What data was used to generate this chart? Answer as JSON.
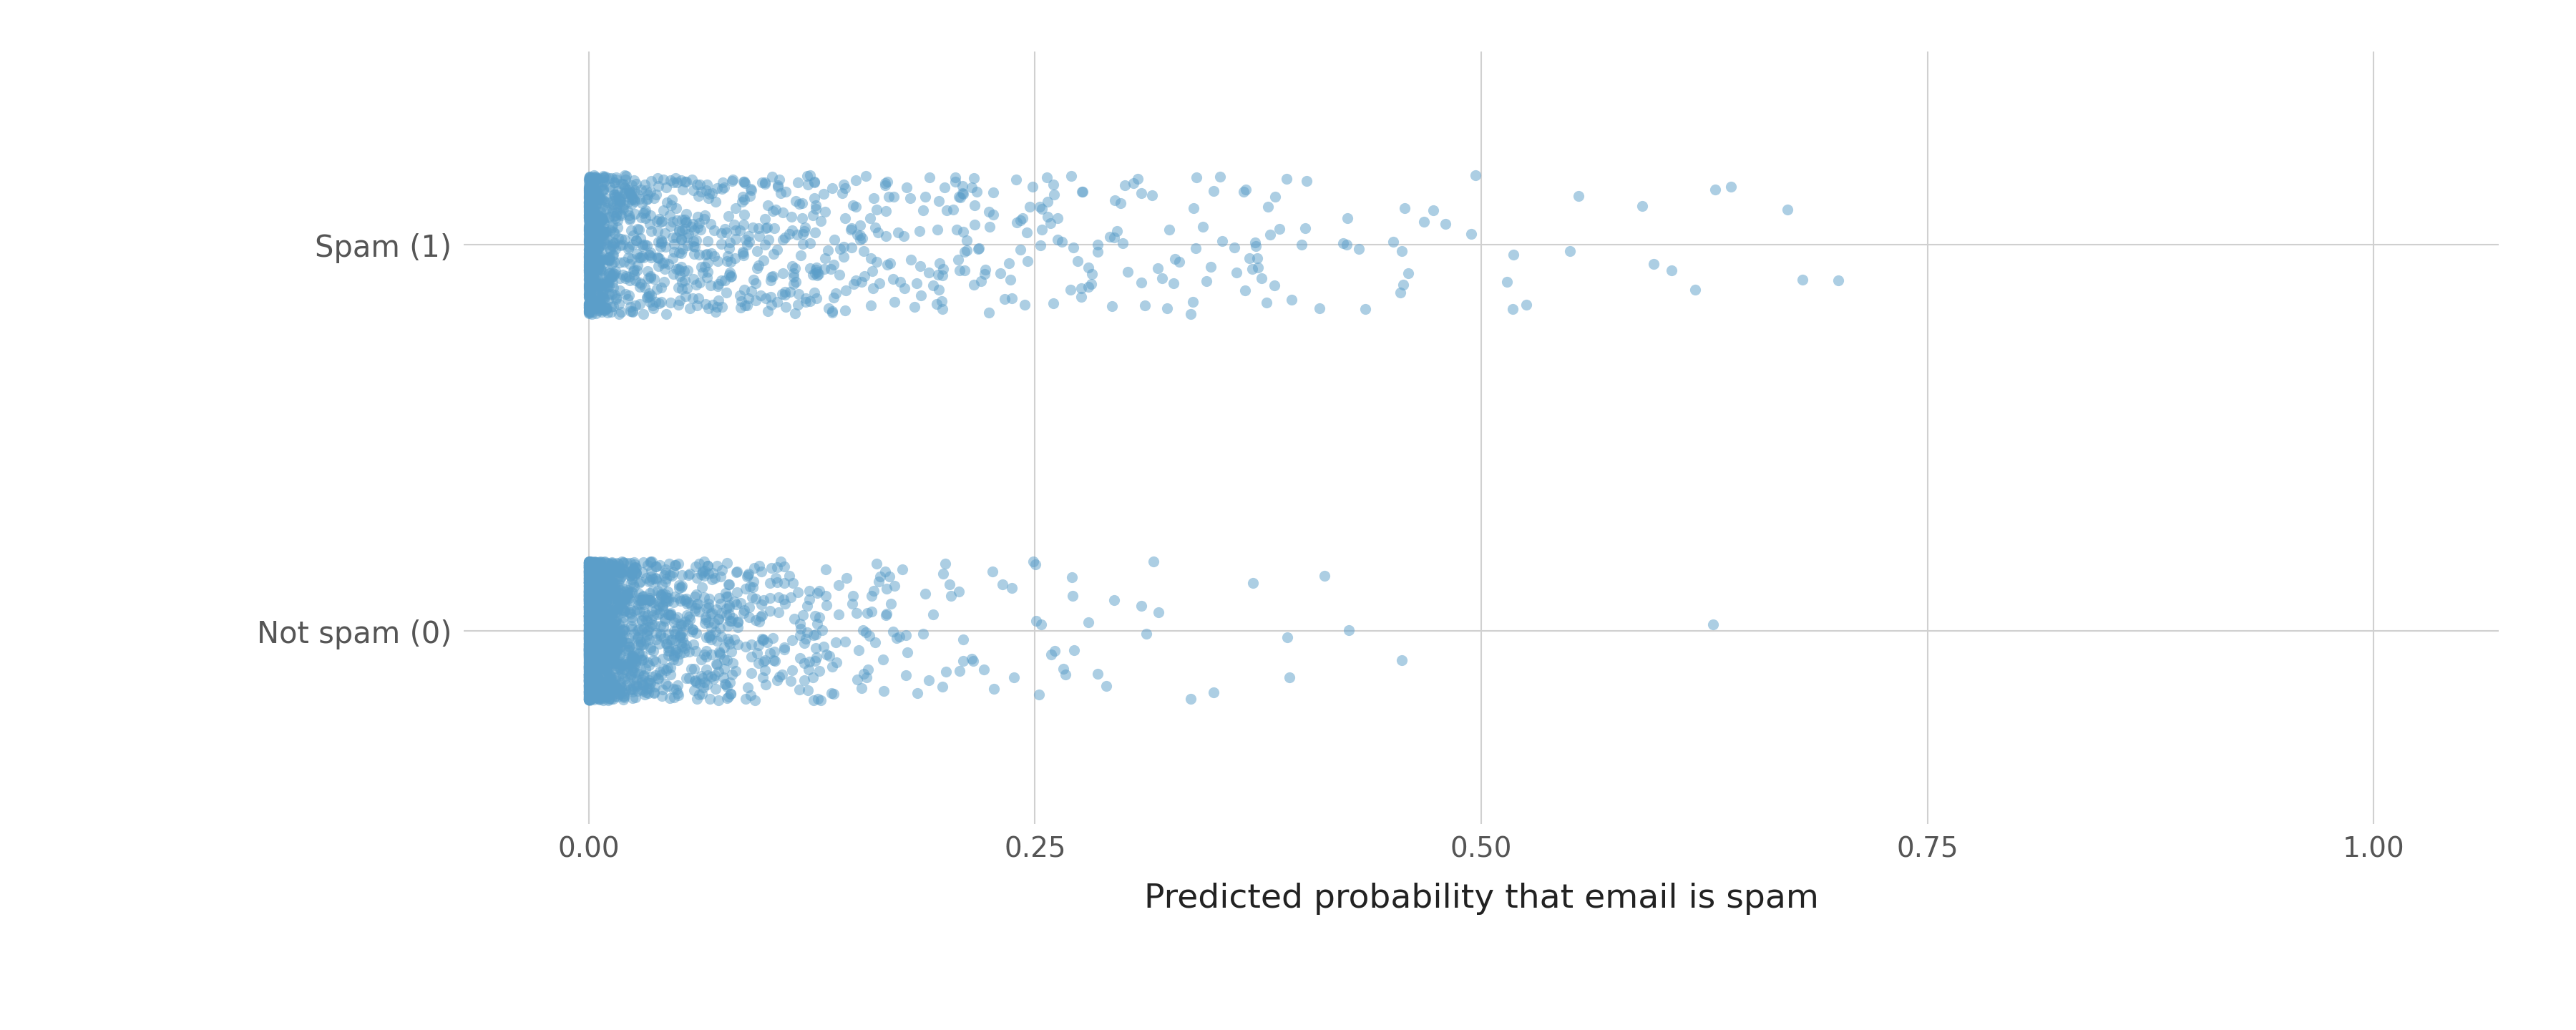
{
  "title": "",
  "xlabel": "Predicted probability that email is spam",
  "ylabel": "",
  "ytick_labels": [
    "Not spam (0)",
    "Spam (1)"
  ],
  "ytick_positions": [
    0,
    1
  ],
  "xlim": [
    -0.07,
    1.07
  ],
  "ylim": [
    -0.5,
    1.5
  ],
  "xticks": [
    0.0,
    0.25,
    0.5,
    0.75,
    1.0
  ],
  "xtick_labels": [
    "0.00",
    "0.25",
    "0.50",
    "0.75",
    "1.00"
  ],
  "n_spam": 1368,
  "n_not_spam": 2553,
  "point_color": "#5B9EC9",
  "point_alpha": 0.5,
  "point_size": 120,
  "jitter_y_scale": 0.18,
  "background_color": "#FFFFFF",
  "grid_color": "#D0D0D0",
  "xlabel_fontsize": 34,
  "ytick_fontsize": 30,
  "xtick_fontsize": 28,
  "seed": 42
}
